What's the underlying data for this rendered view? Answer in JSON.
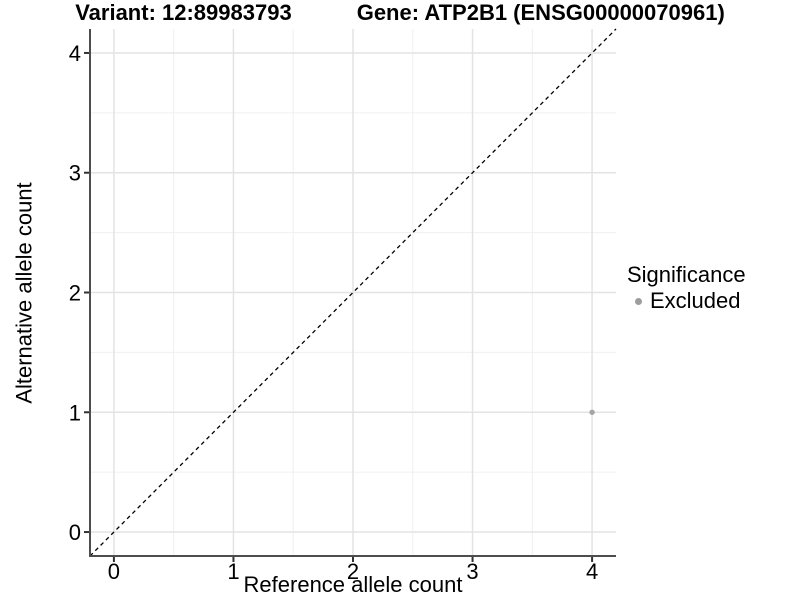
{
  "chart_data": {
    "type": "scatter",
    "title_left": "Variant: 12:89983793",
    "title_right": "Gene: ATP2B1 (ENSG00000070961)",
    "xlabel": "Reference allele count",
    "ylabel": "Alternative allele count",
    "xlim": [
      -0.2,
      4.2
    ],
    "ylim": [
      -0.2,
      4.2
    ],
    "x_ticks": [
      0,
      1,
      2,
      3,
      4
    ],
    "y_ticks": [
      0,
      1,
      2,
      3,
      4
    ],
    "x_tick_labels": [
      "0",
      "1",
      "2",
      "3",
      "4"
    ],
    "y_tick_labels": [
      "0",
      "1",
      "2",
      "3",
      "4"
    ],
    "minor_ticks": [
      0.5,
      1.5,
      2.5,
      3.5
    ],
    "grid": "major+minor",
    "identity_line": {
      "style": "dashed",
      "from": [
        -0.2,
        -0.2
      ],
      "to": [
        4.2,
        4.2
      ],
      "color": "#000000"
    },
    "series": [
      {
        "name": "Excluded",
        "color": "#a5a5a5",
        "points": [
          [
            4,
            1
          ]
        ]
      }
    ],
    "legend": {
      "title": "Significance",
      "position": "right",
      "entries": [
        {
          "label": "Excluded",
          "color": "#9d9d9d",
          "marker": "circle"
        }
      ]
    }
  },
  "colors": {
    "background": "#ffffff",
    "axis_line": "#4d4d4d",
    "tick_mark": "#333333",
    "grid_major": "#e3e3e3",
    "grid_minor": "#f0f0f0",
    "text": "#000000"
  }
}
